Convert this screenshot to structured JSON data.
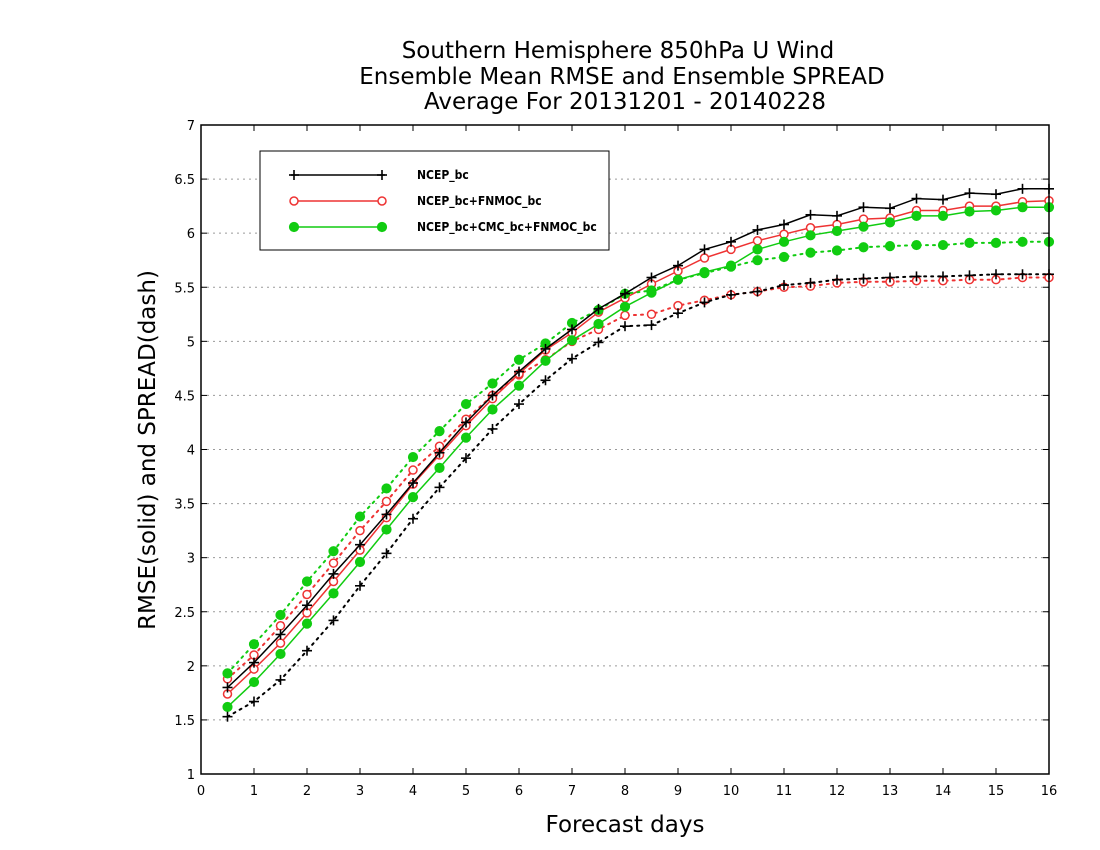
{
  "chart_data": {
    "type": "line",
    "title": [
      "Southern Hemisphere 850hPa U Wind",
      "Ensemble Mean RMSE and Ensemble SPREAD",
      "Average For 20131201 - 20140228"
    ],
    "xlabel": "Forecast days",
    "ylabel": "RMSE(solid) and SPREAD(dash)",
    "xlim": [
      0,
      16
    ],
    "ylim": [
      1,
      7
    ],
    "xticks": [
      "0",
      "1",
      "2",
      "3",
      "4",
      "5",
      "6",
      "7",
      "8",
      "9",
      "10",
      "11",
      "12",
      "13",
      "14",
      "15",
      "16"
    ],
    "yticks": [
      "1",
      "1.5",
      "2",
      "2.5",
      "3",
      "3.5",
      "4",
      "4.5",
      "5",
      "5.5",
      "6",
      "6.5",
      "7"
    ],
    "grid": "horizontal dotted",
    "legend_position": "top-left",
    "x": [
      0.5,
      1,
      1.5,
      2,
      2.5,
      3,
      3.5,
      4,
      4.5,
      5,
      5.5,
      6,
      6.5,
      7,
      7.5,
      8,
      8.5,
      9,
      9.5,
      10,
      10.5,
      11,
      11.5,
      12,
      12.5,
      13,
      13.5,
      14,
      14.5,
      15,
      15.5,
      16
    ],
    "series": [
      {
        "name": "NCEP_bc",
        "color": "#000000",
        "marker": "plus",
        "rmse": [
          1.8,
          2.03,
          2.29,
          2.56,
          2.85,
          3.12,
          3.4,
          3.69,
          3.97,
          4.25,
          4.5,
          4.72,
          4.93,
          5.11,
          5.3,
          5.44,
          5.59,
          5.7,
          5.85,
          5.92,
          6.03,
          6.08,
          6.17,
          6.16,
          6.24,
          6.23,
          6.32,
          6.31,
          6.37,
          6.36,
          6.41,
          6.41
        ],
        "spread": [
          1.53,
          1.67,
          1.87,
          2.14,
          2.42,
          2.74,
          3.04,
          3.36,
          3.65,
          3.92,
          4.19,
          4.42,
          4.64,
          4.84,
          4.99,
          5.14,
          5.15,
          5.26,
          5.36,
          5.43,
          5.46,
          5.52,
          5.54,
          5.57,
          5.58,
          5.59,
          5.6,
          5.6,
          5.61,
          5.62,
          5.62,
          5.62
        ]
      },
      {
        "name": "NCEP_bc+FNMOC_bc",
        "color": "#ee3333",
        "marker": "open-circle",
        "rmse": [
          1.74,
          1.97,
          2.21,
          2.49,
          2.78,
          3.07,
          3.37,
          3.68,
          3.95,
          4.22,
          4.47,
          4.7,
          4.92,
          5.08,
          5.27,
          5.4,
          5.53,
          5.65,
          5.77,
          5.85,
          5.93,
          5.99,
          6.05,
          6.08,
          6.13,
          6.14,
          6.21,
          6.21,
          6.25,
          6.25,
          6.29,
          6.3
        ],
        "spread": [
          1.88,
          2.1,
          2.37,
          2.66,
          2.95,
          3.25,
          3.52,
          3.81,
          4.03,
          4.28,
          4.5,
          4.69,
          4.83,
          5.0,
          5.11,
          5.24,
          5.25,
          5.33,
          5.38,
          5.43,
          5.46,
          5.5,
          5.51,
          5.54,
          5.55,
          5.55,
          5.56,
          5.56,
          5.57,
          5.57,
          5.59,
          5.59
        ]
      },
      {
        "name": "NCEP_bc+CMC_bc+FNMOC_bc",
        "color": "#11cc11",
        "marker": "filled-circle",
        "rmse": [
          1.62,
          1.85,
          2.11,
          2.39,
          2.67,
          2.96,
          3.26,
          3.56,
          3.83,
          4.11,
          4.37,
          4.59,
          4.82,
          5.01,
          5.16,
          5.32,
          5.45,
          5.57,
          5.64,
          5.7,
          5.85,
          5.92,
          5.98,
          6.02,
          6.06,
          6.1,
          6.16,
          6.16,
          6.2,
          6.21,
          6.24,
          6.24
        ],
        "spread": [
          1.93,
          2.2,
          2.47,
          2.78,
          3.06,
          3.38,
          3.64,
          3.93,
          4.17,
          4.42,
          4.61,
          4.83,
          4.98,
          5.17,
          5.29,
          5.44,
          5.47,
          5.57,
          5.63,
          5.69,
          5.75,
          5.78,
          5.82,
          5.84,
          5.87,
          5.88,
          5.89,
          5.89,
          5.91,
          5.91,
          5.92,
          5.92
        ]
      }
    ]
  }
}
